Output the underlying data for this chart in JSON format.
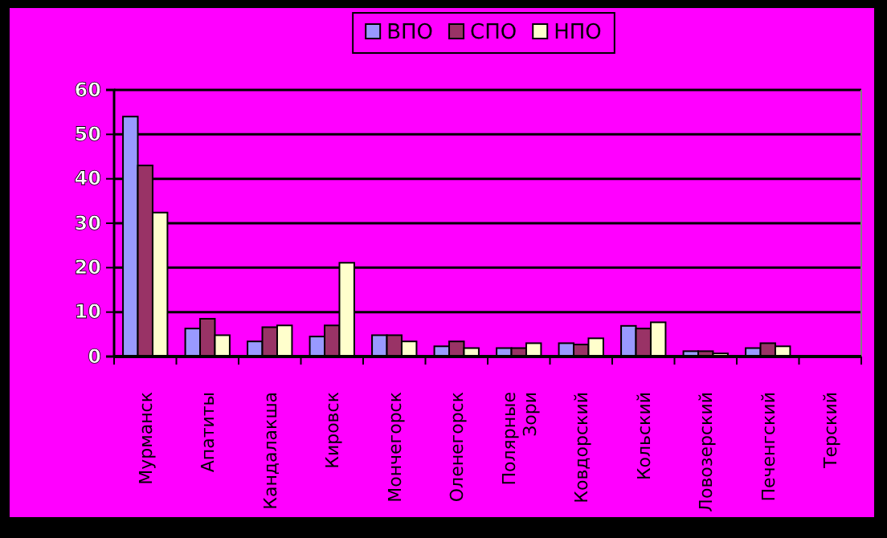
{
  "chart_data": {
    "type": "bar",
    "categories": [
      "Мурманск",
      "Апатиты",
      "Кандалакша",
      "Кировск",
      "Мончегорск",
      "Оленегорск",
      "Полярные Зори",
      "Ковдорский",
      "Кольский",
      "Ловозерский",
      "Печенгский",
      "Терский"
    ],
    "series": [
      {
        "name": "ВПО",
        "color": "#9999ff",
        "values": [
          54,
          6.3,
          3.4,
          4.5,
          4.8,
          2.3,
          1.9,
          3.0,
          6.9,
          1.2,
          1.9,
          null
        ]
      },
      {
        "name": "СПО",
        "color": "#993366",
        "values": [
          43,
          8.5,
          6.6,
          7.0,
          4.8,
          3.4,
          1.9,
          2.7,
          6.3,
          1.2,
          3.0,
          null
        ]
      },
      {
        "name": "НПО",
        "color": "#ffffcc",
        "values": [
          32.4,
          4.8,
          7.0,
          21.1,
          3.4,
          1.9,
          3.0,
          4.1,
          7.7,
          0.7,
          2.3,
          null
        ]
      }
    ],
    "ylim": [
      0,
      60
    ],
    "yticks": [
      0,
      10,
      20,
      30,
      40,
      50,
      60
    ],
    "grid": "y",
    "legend": "top"
  }
}
